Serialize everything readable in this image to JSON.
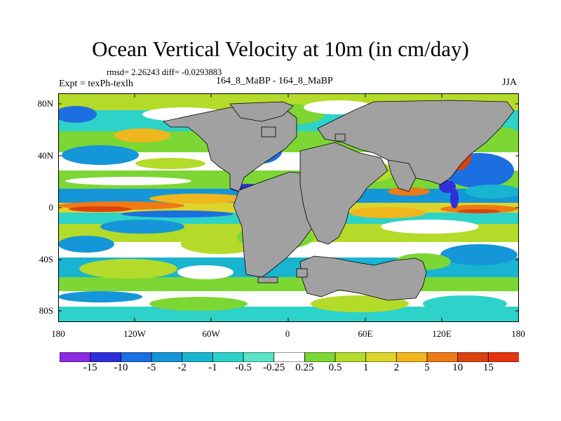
{
  "title": "Ocean Vertical Velocity at 10m (in cm/day)",
  "stats_text": "rmsd= 2.26243 diff= -0.0293883",
  "experiment_text": "Expt = texPh-texlh",
  "comparison_text": "164_8_MaBP - 164_8_MaBP",
  "season_text": "JJA",
  "lat_labels": [
    "80N",
    "40N",
    "0",
    "40S",
    "80S"
  ],
  "lon_labels": [
    "180",
    "120W",
    "60W",
    "0",
    "60E",
    "120E",
    "180"
  ],
  "colorbar": {
    "labels": [
      "-15",
      "-10",
      "-5",
      "-2",
      "-1",
      "-0.5",
      "-0.25",
      "0.25",
      "0.5",
      "1",
      "2",
      "5",
      "10",
      "15"
    ],
    "colors": [
      "#8a2be2",
      "#2f2fdc",
      "#1c6fe0",
      "#1496d8",
      "#18b4d0",
      "#2dd2c8",
      "#5be4c6",
      "#ffffff",
      "#7cd634",
      "#b5db2a",
      "#dcd42a",
      "#f0b61e",
      "#ee7a16",
      "#d9420e",
      "#e8330f"
    ]
  },
  "colors": {
    "land": "#a1a1a1",
    "frame": "#000000"
  }
}
